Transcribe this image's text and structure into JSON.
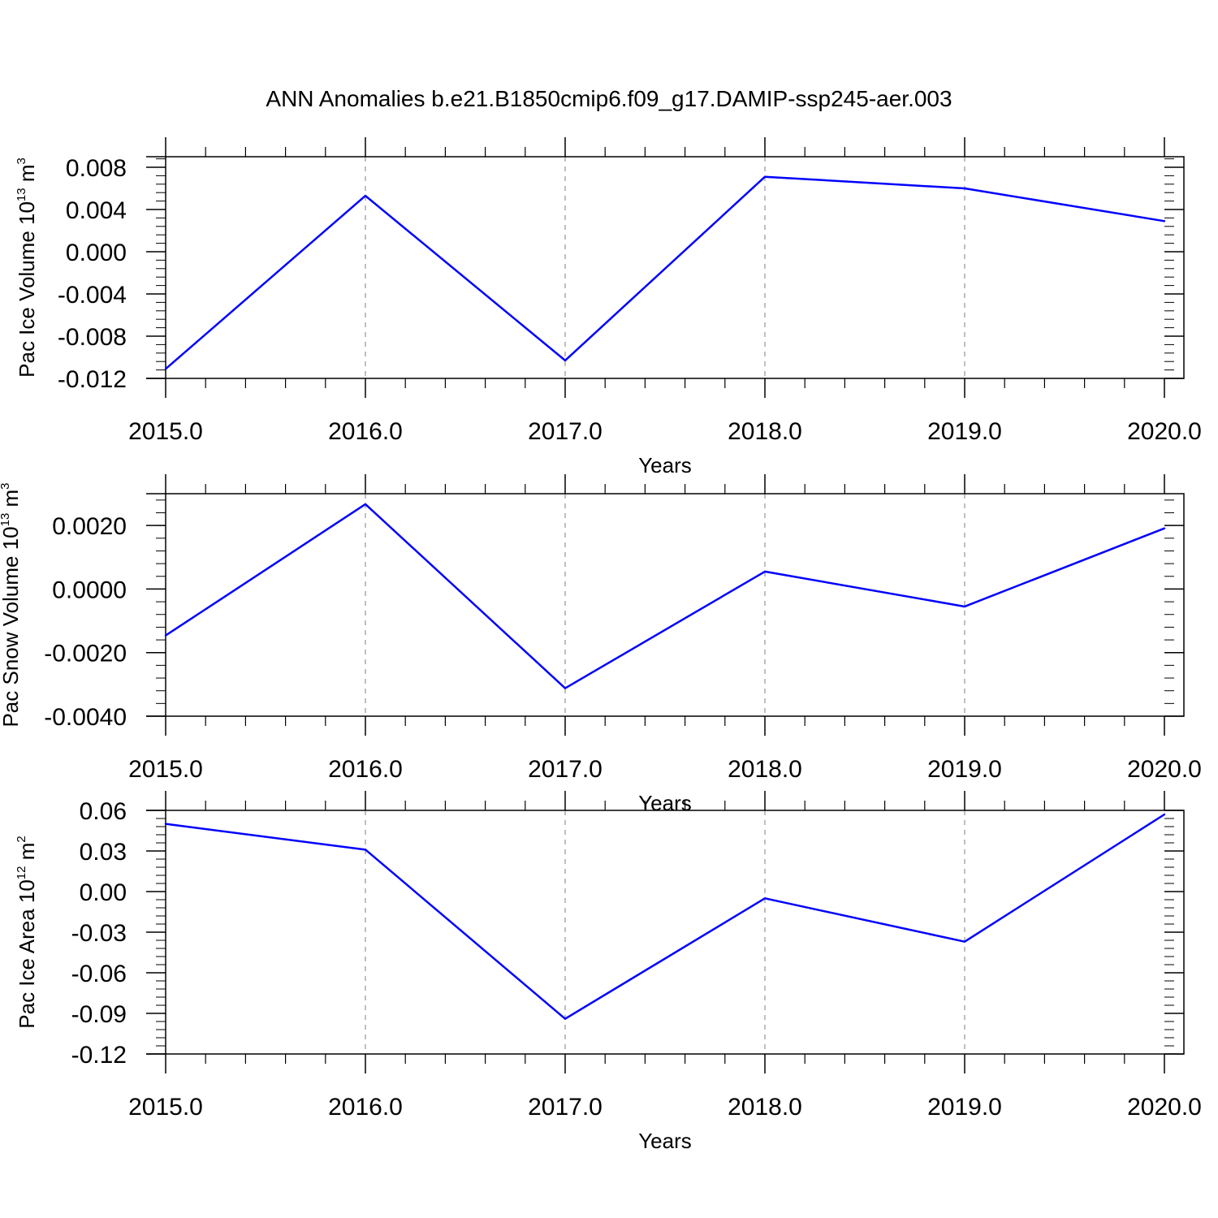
{
  "title": "ANN Anomalies b.e21.B1850cmip6.f09_g17.DAMIP-ssp245-aer.003",
  "colors": {
    "series": "#0000ff",
    "axis": "#000000",
    "grid": "#aaaaaa"
  },
  "chart_data": [
    {
      "type": "line",
      "xlabel": "Years",
      "ylabel": {
        "text": "Pac Ice Volume 10",
        "exp1": "13",
        "mid": " m",
        "exp2": "3"
      },
      "xlim": [
        2015,
        2020
      ],
      "ylim": [
        -0.012,
        0.009
      ],
      "xticks": [
        2015,
        2016,
        2017,
        2018,
        2019,
        2020
      ],
      "xtick_labels": [
        "2015.0",
        "2016.0",
        "2017.0",
        "2018.0",
        "2019.0",
        "2020.0"
      ],
      "yticks": [
        -0.012,
        -0.008,
        -0.004,
        0.0,
        0.004,
        0.008
      ],
      "ytick_labels": [
        "-0.012",
        "-0.008",
        "-0.004",
        "0.000",
        "0.004",
        "0.008"
      ],
      "grid": "vertical-dashed",
      "series": [
        {
          "x": [
            2015,
            2016,
            2017,
            2018,
            2019,
            2020
          ],
          "values": [
            -0.0111,
            0.0053,
            -0.0103,
            0.0071,
            0.006,
            0.0029
          ]
        }
      ]
    },
    {
      "type": "line",
      "xlabel": "Years",
      "ylabel": {
        "text": "Pac Snow Volume 10",
        "exp1": "13",
        "mid": " m",
        "exp2": "3"
      },
      "xlim": [
        2015,
        2020
      ],
      "ylim": [
        -0.004,
        0.003
      ],
      "xticks": [
        2015,
        2016,
        2017,
        2018,
        2019,
        2020
      ],
      "xtick_labels": [
        "2015.0",
        "2016.0",
        "2017.0",
        "2018.0",
        "2019.0",
        "2020.0"
      ],
      "yticks": [
        -0.004,
        -0.002,
        0.0,
        0.002
      ],
      "ytick_labels": [
        "-0.0040",
        "-0.0020",
        "0.0000",
        "0.0020"
      ],
      "grid": "vertical-dashed",
      "series": [
        {
          "x": [
            2015,
            2016,
            2017,
            2018,
            2019,
            2020
          ],
          "values": [
            -0.00146,
            0.00267,
            -0.00312,
            0.00055,
            -0.00055,
            0.00191
          ]
        }
      ]
    },
    {
      "type": "line",
      "xlabel": "Years",
      "ylabel": {
        "text": "Pac Ice Area 10",
        "exp1": "12",
        "mid": " m",
        "exp2": "2"
      },
      "xlim": [
        2015,
        2020
      ],
      "ylim": [
        -0.12,
        0.06
      ],
      "xticks": [
        2015,
        2016,
        2017,
        2018,
        2019,
        2020
      ],
      "xtick_labels": [
        "2015.0",
        "2016.0",
        "2017.0",
        "2018.0",
        "2019.0",
        "2020.0"
      ],
      "yticks": [
        -0.12,
        -0.09,
        -0.06,
        -0.03,
        0.0,
        0.03,
        0.06
      ],
      "ytick_labels": [
        "-0.12",
        "-0.09",
        "-0.06",
        "-0.03",
        "0.00",
        "0.03",
        "0.06"
      ],
      "grid": "vertical-dashed",
      "series": [
        {
          "x": [
            2015,
            2016,
            2017,
            2018,
            2019,
            2020
          ],
          "values": [
            0.05,
            0.031,
            -0.094,
            -0.005,
            -0.037,
            0.057
          ]
        }
      ]
    }
  ]
}
